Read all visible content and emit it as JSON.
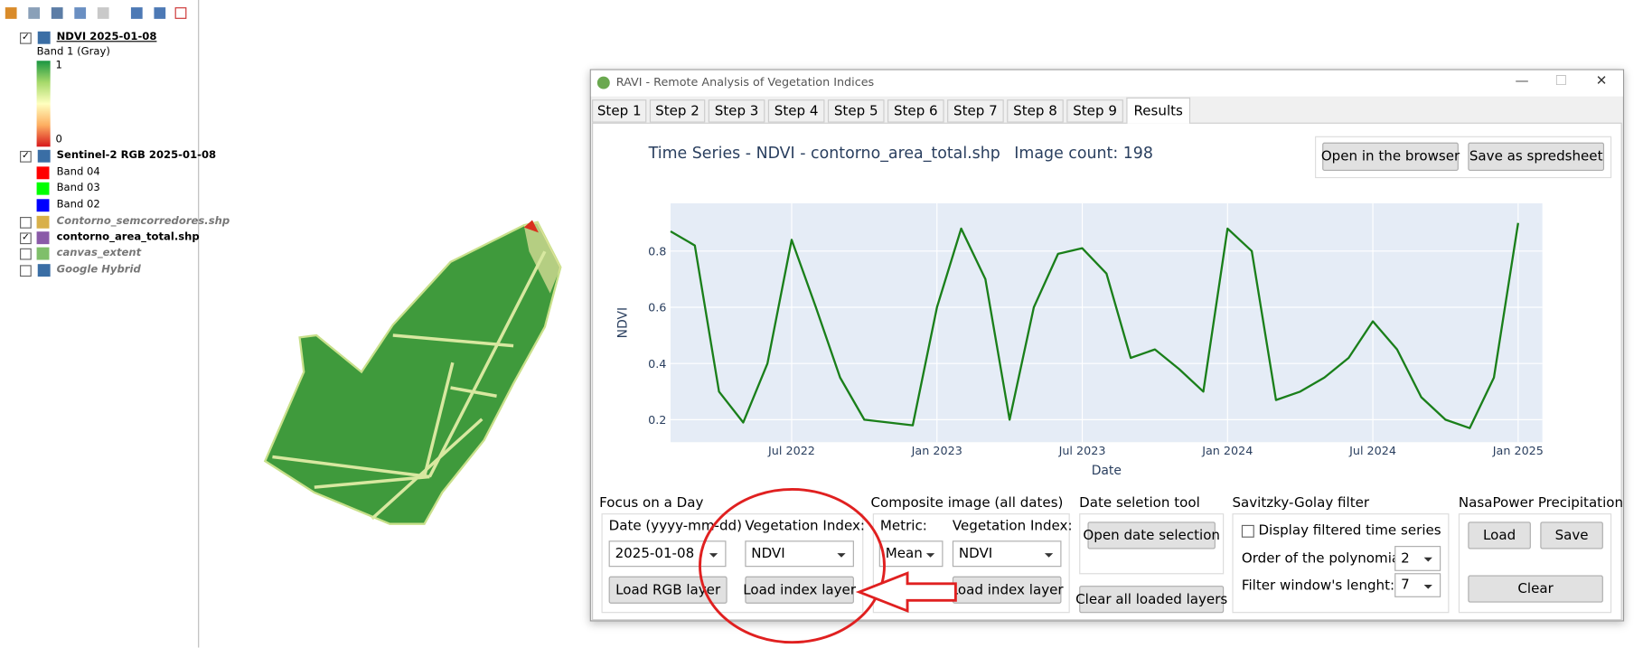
{
  "layers_panel": {
    "layers": [
      {
        "name": "NDVI 2025-01-08",
        "legend_title": "Band 1 (Gray)",
        "legend_max": 1,
        "legend_min": 0
      },
      {
        "name": "Sentinel-2 RGB 2025-01-08",
        "bands": [
          "Band 04",
          "Band 03",
          "Band 02"
        ]
      },
      {
        "name": "Contorno_semcorredores.shp"
      },
      {
        "name": "contorno_area_total.shp"
      },
      {
        "name": "canvas_extent"
      },
      {
        "name": "Google Hybrid"
      }
    ]
  },
  "dialog": {
    "title": "RAVI - Remote Analysis of Vegetation Indices",
    "tabs": [
      "Step 1",
      "Step 2",
      "Step 3",
      "Step 4",
      "Step 5",
      "Step 6",
      "Step 7",
      "Step 8",
      "Step 9",
      "Results"
    ],
    "header": {
      "title": "Time Series - NDVI - contorno_area_total.shp",
      "image_count": "Image count: 198",
      "buttons": [
        "Open in the browser",
        "Save as spredsheet"
      ]
    },
    "chart": {
      "type": "line",
      "x_label": "Date",
      "y_label": "NDVI",
      "color": "#1a7f1a",
      "grid": true,
      "x": [
        "2022-02",
        "2022-03",
        "2022-04",
        "2022-05",
        "2022-06",
        "2022-07",
        "2022-08",
        "2022-09",
        "2022-10",
        "2022-11",
        "2022-12",
        "2023-01",
        "2023-02",
        "2023-03",
        "2023-04",
        "2023-05",
        "2023-06",
        "2023-07",
        "2023-08",
        "2023-09",
        "2023-10",
        "2023-11",
        "2023-12",
        "2024-01",
        "2024-02",
        "2024-03",
        "2024-04",
        "2024-05",
        "2024-06",
        "2024-07",
        "2024-08",
        "2024-09",
        "2024-10",
        "2024-11",
        "2024-12",
        "2025-01"
      ],
      "values": [
        0.87,
        0.82,
        0.3,
        0.19,
        0.4,
        0.84,
        0.6,
        0.35,
        0.2,
        0.19,
        0.18,
        0.6,
        0.88,
        0.7,
        0.2,
        0.6,
        0.79,
        0.81,
        0.72,
        0.42,
        0.45,
        0.38,
        0.3,
        0.88,
        0.8,
        0.27,
        0.3,
        0.35,
        0.42,
        0.55,
        0.45,
        0.28,
        0.2,
        0.17,
        0.35,
        0.9
      ],
      "xlim": [
        "2022-02",
        "2025-02"
      ],
      "xticks": [
        {
          "value": "2022-07",
          "label": "Jul 2022"
        },
        {
          "value": "2023-01",
          "label": "Jan 2023"
        },
        {
          "value": "2023-07",
          "label": "Jul 2023"
        },
        {
          "value": "2024-01",
          "label": "Jan 2024"
        },
        {
          "value": "2024-07",
          "label": "Jul 2024"
        },
        {
          "value": "2025-01",
          "label": "Jan 2025"
        }
      ],
      "ylim": [
        0.12,
        0.97
      ],
      "yticks": [
        0.2,
        0.4,
        0.6,
        0.8
      ]
    },
    "focus": {
      "title": "Focus on a Day",
      "date_label": "Date (yyyy-mm-dd)",
      "index_label": "Vegetation Index:",
      "date": "2025-01-08",
      "index": "NDVI",
      "rgb_button": "Load RGB layer",
      "index_button": "Load index layer"
    },
    "composite": {
      "title": "Composite image (all dates)",
      "metric_label": "Metric:",
      "index_label": "Vegetation Index:",
      "metric": "Mean",
      "index": "NDVI",
      "index_button": "Load index layer"
    },
    "date_tool": {
      "title": "Date seletion tool",
      "open_button": "Open date selection",
      "clear_button": "Clear all loaded layers"
    },
    "savgol": {
      "title": "Savitzky-Golay filter",
      "checkbox": "Display filtered time series",
      "order_label": "Order of the polynomial:",
      "order": "2",
      "window_label": "Filter window's lenght:",
      "window": "7"
    },
    "nasa": {
      "title": "NasaPower Precipitation",
      "load": "Load",
      "save": "Save",
      "clear": "Clear"
    }
  }
}
